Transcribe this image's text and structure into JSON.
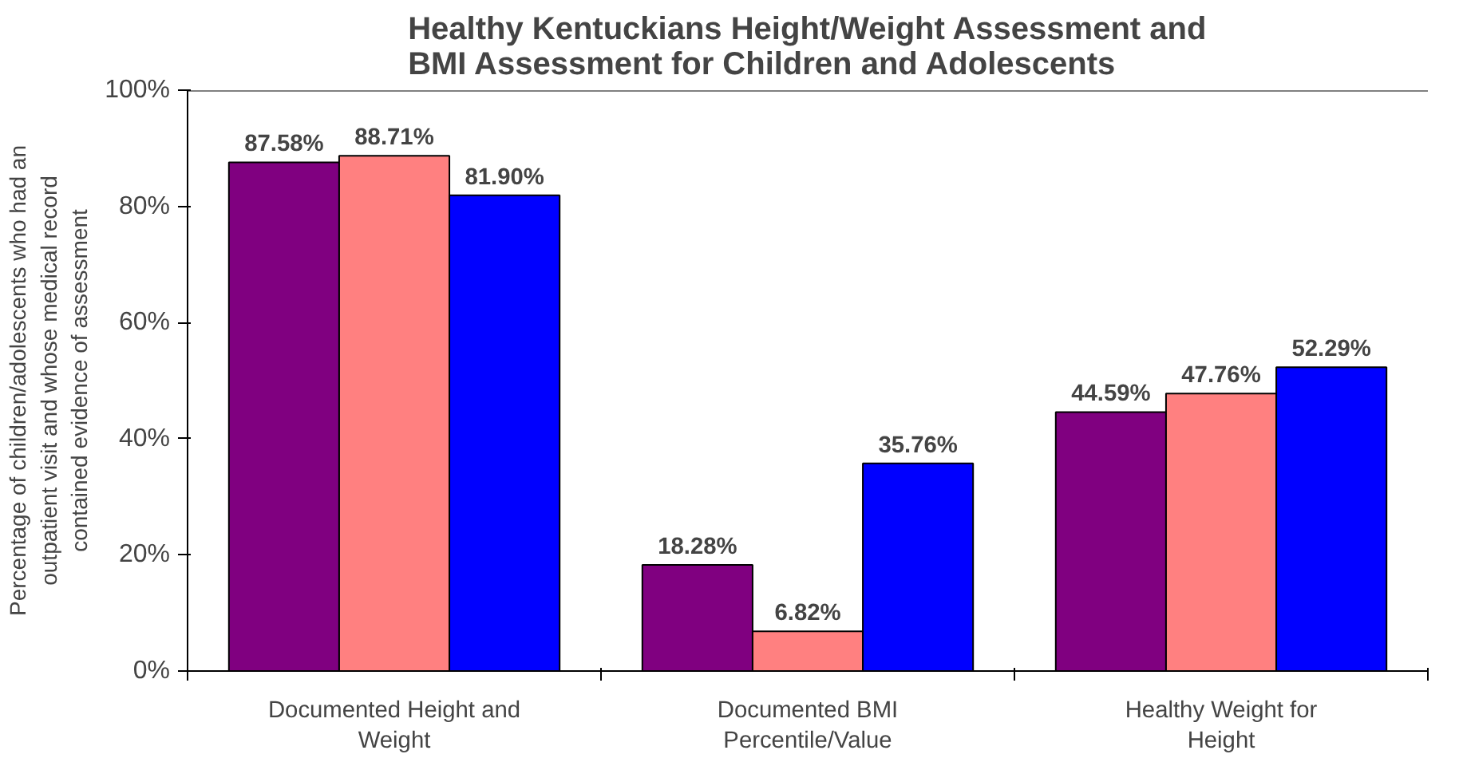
{
  "chart_data": {
    "type": "bar",
    "title": "Healthy Kentuckians Height/Weight Assessment and\nBMI Assessment for Children and Adolescents",
    "ylabel": "Percentage of children/adolescents who had an\noutpatient visit and whose medical record\ncontained evidence of assessment",
    "categories": [
      "Documented Height and\nWeight",
      "Documented BMI\nPercentile/Value",
      "Healthy Weight for\nHeight"
    ],
    "series": [
      {
        "color": "#800080",
        "values": [
          87.58,
          18.28,
          44.59
        ],
        "value_labels": [
          "87.58%",
          "18.28%",
          "44.59%"
        ]
      },
      {
        "color": "#ff8080",
        "values": [
          88.71,
          6.82,
          47.76
        ],
        "value_labels": [
          "88.71%",
          "6.82%",
          "47.76%"
        ]
      },
      {
        "color": "#0000ff",
        "values": [
          81.9,
          35.76,
          52.29
        ],
        "value_labels": [
          "81.90%",
          "35.76%",
          "52.29%"
        ]
      }
    ],
    "ylim": [
      0,
      100
    ],
    "yticks": [
      {
        "value": 0,
        "label": "0%"
      },
      {
        "value": 20,
        "label": "20%"
      },
      {
        "value": 40,
        "label": "40%"
      },
      {
        "value": 60,
        "label": "60%"
      },
      {
        "value": 80,
        "label": "80%"
      },
      {
        "value": 100,
        "label": "100%"
      }
    ],
    "grid": false
  }
}
